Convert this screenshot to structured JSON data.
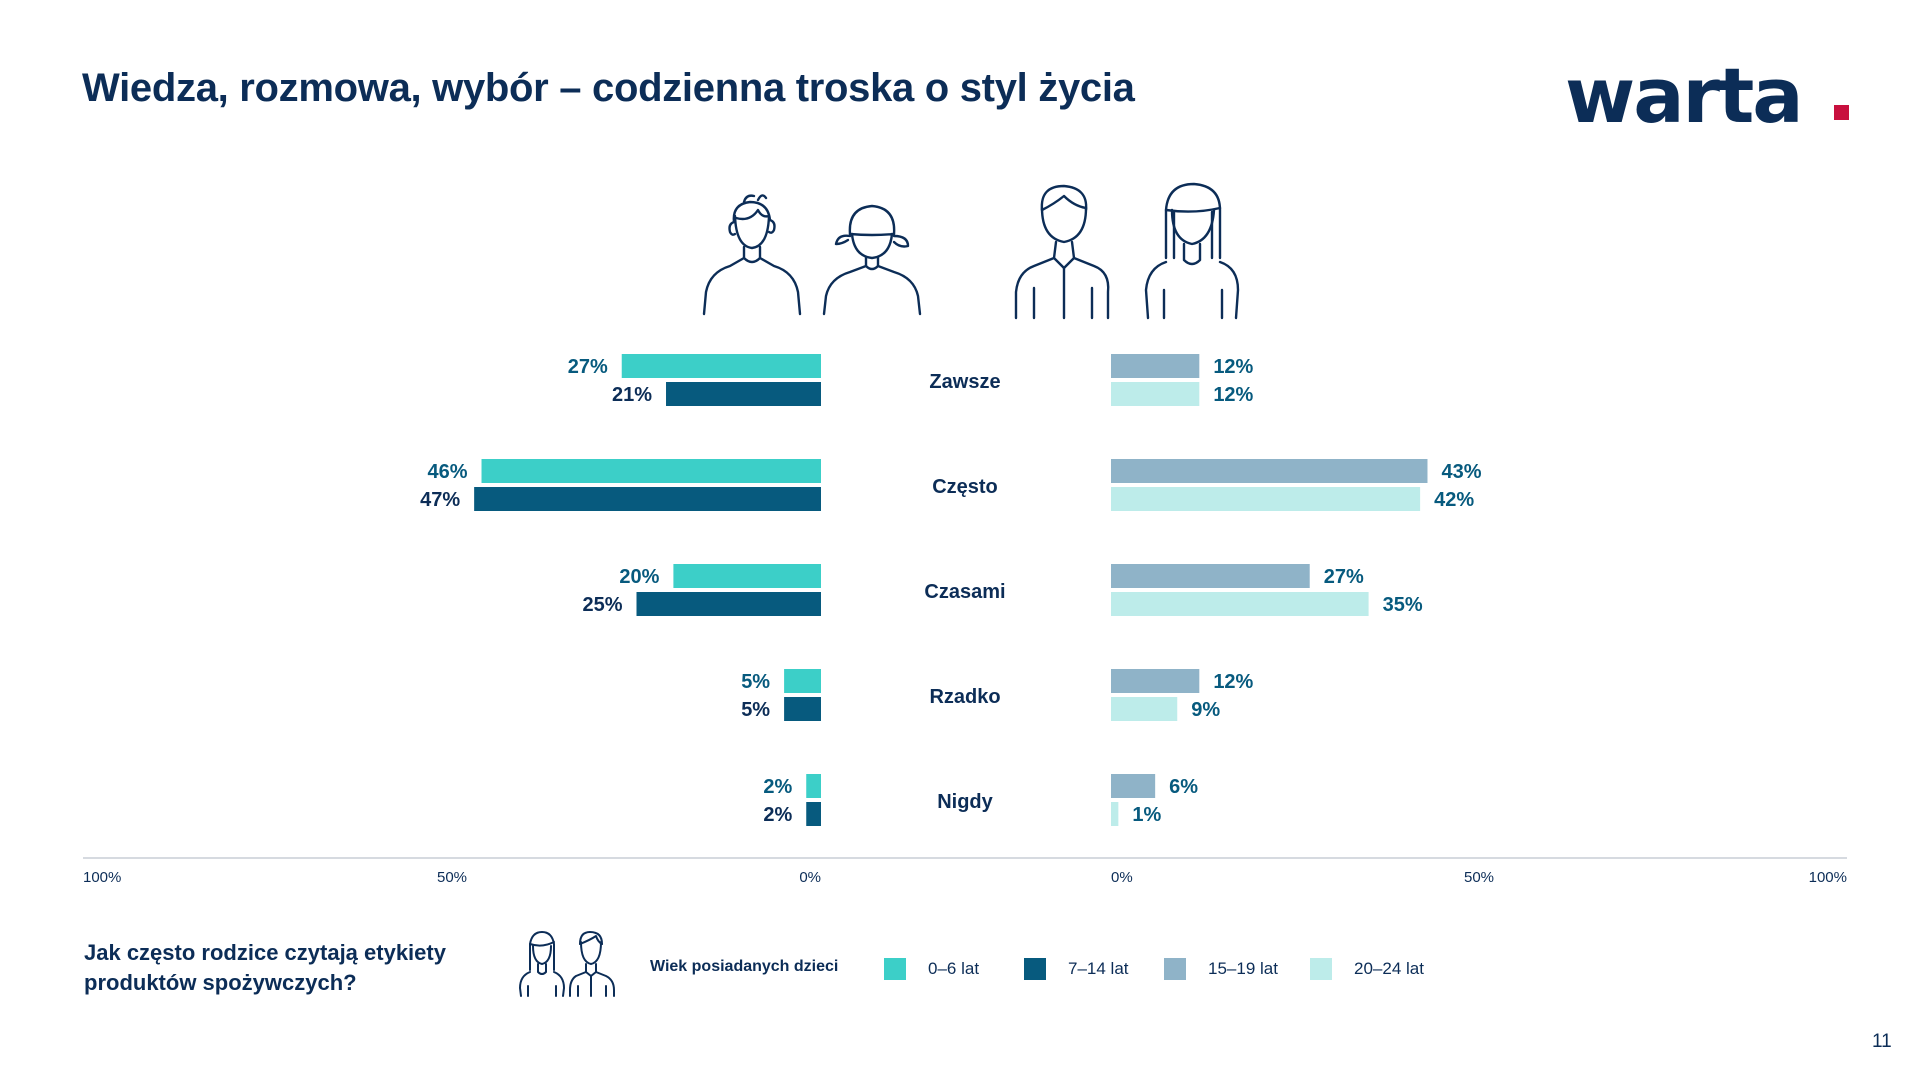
{
  "header": {
    "title": "Wiedza, rozmowa, wybór – codzienna troska o styl życia",
    "logo_text": "warta"
  },
  "colors": {
    "navy": "#0c2d57",
    "accent_red": "#c8103e",
    "age_0_6": "#3ccfc8",
    "age_7_14": "#075a7e",
    "age_15_19": "#8fb3c8",
    "age_20_24": "#bdecea"
  },
  "icons": {
    "group_icons": [
      "boy-icon",
      "girl-icon",
      "teen-boy-icon",
      "teen-girl-icon"
    ],
    "legend_icon": "parents-icon"
  },
  "chart_data": {
    "type": "bar",
    "orientation": "horizontal-diverging",
    "categories": [
      "Zawsze",
      "Często",
      "Czasami",
      "Rzadko",
      "Nigdy"
    ],
    "series": [
      {
        "name": "0–6 lat",
        "side": "left",
        "color": "#3ccfc8",
        "values": [
          27,
          46,
          20,
          5,
          2
        ],
        "labels": [
          "27%",
          "46%",
          "20%",
          "5%",
          "2%"
        ]
      },
      {
        "name": "7–14 lat",
        "side": "left",
        "color": "#075a7e",
        "values": [
          21,
          47,
          25,
          5,
          2
        ],
        "labels": [
          "21%",
          "47%",
          "25%",
          "5%",
          "2%"
        ]
      },
      {
        "name": "15–19 lat",
        "side": "right",
        "color": "#8fb3c8",
        "values": [
          12,
          43,
          27,
          12,
          6
        ],
        "labels": [
          "12%",
          "43%",
          "27%",
          "12%",
          "6%"
        ]
      },
      {
        "name": "20–24 lat",
        "side": "right",
        "color": "#bdecea",
        "values": [
          12,
          42,
          35,
          9,
          1
        ],
        "labels": [
          "12%",
          "42%",
          "35%",
          "9%",
          "1%"
        ]
      }
    ],
    "xlim": [
      0,
      100
    ],
    "left_axis_ticks": [
      "100%",
      "50%",
      "0%"
    ],
    "right_axis_ticks": [
      "0%",
      "50%",
      "100%"
    ],
    "legend_placement": "bottom"
  },
  "footer": {
    "question": "Jak często rodzice czytają etykiety produktów spożywczych?",
    "legend_title": "Wiek posiadanych dzieci",
    "page_number": "11"
  }
}
